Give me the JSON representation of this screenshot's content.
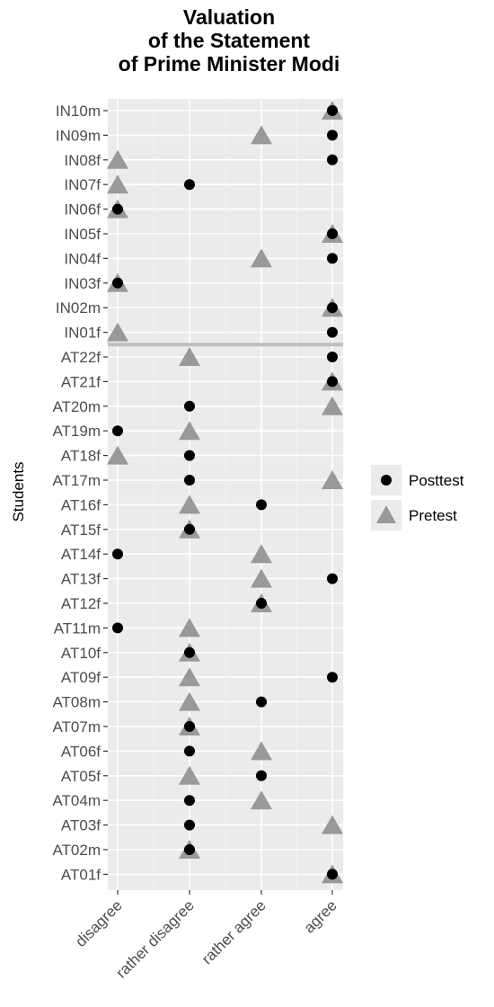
{
  "chart_data": {
    "type": "scatter",
    "title_lines": [
      "Valuation",
      "of the Statement",
      "of Prime Minister Modi"
    ],
    "xlabel": "",
    "ylabel": "Students",
    "x_categories": [
      "disagree",
      "rather disagree",
      "rather agree",
      "agree"
    ],
    "y_categories": [
      "IN10m",
      "IN09m",
      "IN08f",
      "IN07f",
      "IN06f",
      "IN05f",
      "IN04f",
      "IN03f",
      "IN02m",
      "IN01f",
      "AT22f",
      "AT21f",
      "AT20m",
      "AT19m",
      "AT18f",
      "AT17m",
      "AT16f",
      "AT15f",
      "AT14f",
      "AT13f",
      "AT12f",
      "AT11m",
      "AT10f",
      "AT09f",
      "AT08m",
      "AT07m",
      "AT06f",
      "AT05f",
      "AT04m",
      "AT03f",
      "AT02m",
      "AT01f"
    ],
    "series": [
      {
        "name": "Posttest",
        "marker": "circle",
        "color": "#000000",
        "values": [
          "agree",
          "agree",
          "agree",
          "rather disagree",
          "disagree",
          "agree",
          "agree",
          "disagree",
          "agree",
          "agree",
          "agree",
          "agree",
          "rather disagree",
          "disagree",
          "rather disagree",
          "rather disagree",
          "rather agree",
          "rather disagree",
          "disagree",
          "agree",
          "rather agree",
          "disagree",
          "rather disagree",
          "agree",
          "rather agree",
          "rather disagree",
          "rather disagree",
          "rather agree",
          "rather disagree",
          "rather disagree",
          "rather disagree",
          "agree"
        ]
      },
      {
        "name": "Pretest",
        "marker": "triangle",
        "color": "#999999",
        "values": [
          "agree",
          "rather agree",
          "disagree",
          "disagree",
          "disagree",
          "agree",
          "rather agree",
          "disagree",
          "agree",
          "disagree",
          "rather disagree",
          "agree",
          "agree",
          "rather disagree",
          "disagree",
          "agree",
          "rather disagree",
          "rather disagree",
          "rather agree",
          "rather agree",
          "rather agree",
          "rather disagree",
          "rather disagree",
          "rather disagree",
          "rather disagree",
          "rather disagree",
          "rather agree",
          "rather disagree",
          "rather agree",
          "agree",
          "rather disagree",
          "agree"
        ]
      }
    ],
    "separator_between": [
      "IN01f",
      "AT22f"
    ],
    "legend_position": "right",
    "grid": true,
    "panel_background": "#ebebeb"
  }
}
